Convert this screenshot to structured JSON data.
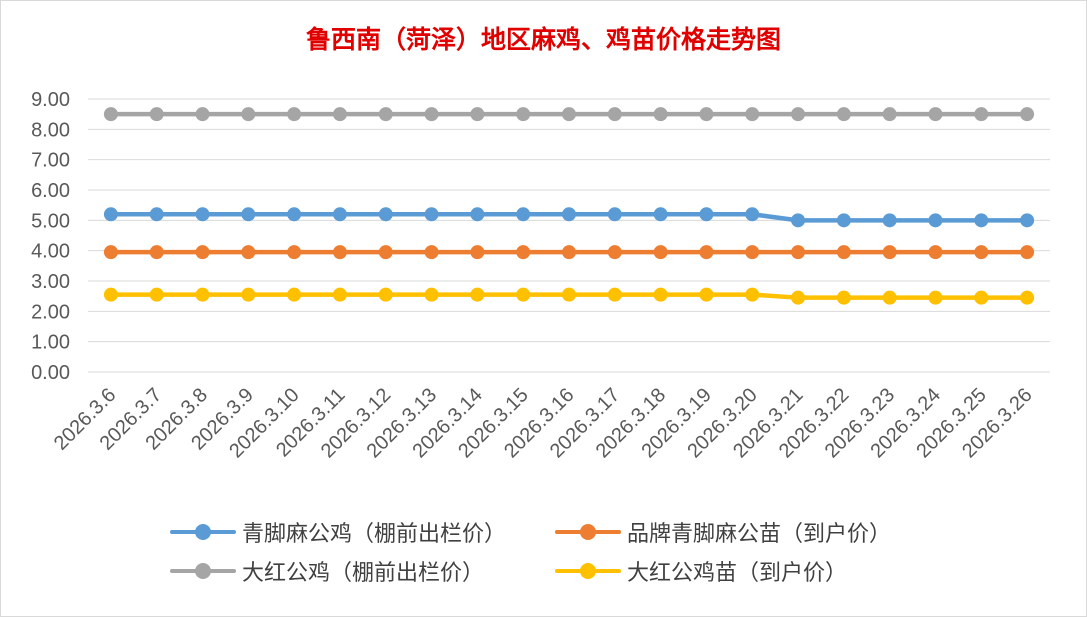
{
  "chart_data": {
    "type": "line",
    "title": "鲁西南（菏泽）地区麻鸡、鸡苗价格走势图",
    "categories": [
      "2026.3.6",
      "2026.3.7",
      "2026.3.8",
      "2026.3.9",
      "2026.3.10",
      "2026.3.11",
      "2026.3.12",
      "2026.3.13",
      "2026.3.14",
      "2026.3.15",
      "2026.3.16",
      "2026.3.17",
      "2026.3.18",
      "2026.3.19",
      "2026.3.20",
      "2026.3.21",
      "2026.3.22",
      "2026.3.23",
      "2026.3.24",
      "2026.3.25",
      "2026.3.26"
    ],
    "y_ticks": [
      "0.00",
      "1.00",
      "2.00",
      "3.00",
      "4.00",
      "5.00",
      "6.00",
      "7.00",
      "8.00",
      "9.00"
    ],
    "ylim": [
      0,
      9
    ],
    "grid": true,
    "legend_position": "bottom",
    "series": [
      {
        "name": "青脚麻公鸡（棚前出栏价）",
        "color": "#5b9bd5",
        "values": [
          5.2,
          5.2,
          5.2,
          5.2,
          5.2,
          5.2,
          5.2,
          5.2,
          5.2,
          5.2,
          5.2,
          5.2,
          5.2,
          5.2,
          5.2,
          5.0,
          5.0,
          5.0,
          5.0,
          5.0,
          5.0
        ]
      },
      {
        "name": "品牌青脚麻公苗（到户价）",
        "color": "#ed7d31",
        "values": [
          3.95,
          3.95,
          3.95,
          3.95,
          3.95,
          3.95,
          3.95,
          3.95,
          3.95,
          3.95,
          3.95,
          3.95,
          3.95,
          3.95,
          3.95,
          3.95,
          3.95,
          3.95,
          3.95,
          3.95,
          3.95
        ]
      },
      {
        "name": "大红公鸡（棚前出栏价）",
        "color": "#a5a5a5",
        "values": [
          8.5,
          8.5,
          8.5,
          8.5,
          8.5,
          8.5,
          8.5,
          8.5,
          8.5,
          8.5,
          8.5,
          8.5,
          8.5,
          8.5,
          8.5,
          8.5,
          8.5,
          8.5,
          8.5,
          8.5,
          8.5
        ]
      },
      {
        "name": "大红公鸡苗（到户价）",
        "color": "#ffc000",
        "values": [
          2.55,
          2.55,
          2.55,
          2.55,
          2.55,
          2.55,
          2.55,
          2.55,
          2.55,
          2.55,
          2.55,
          2.55,
          2.55,
          2.55,
          2.55,
          2.45,
          2.45,
          2.45,
          2.45,
          2.45,
          2.45
        ]
      }
    ]
  }
}
